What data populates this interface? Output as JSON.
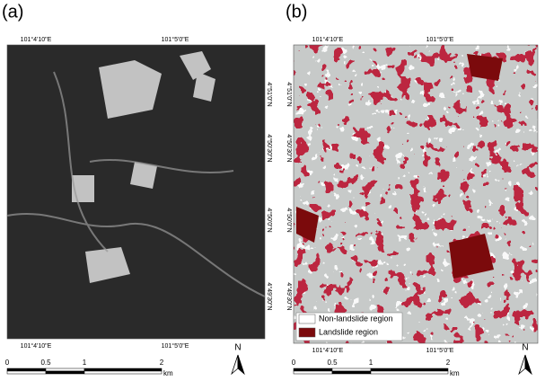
{
  "panels": [
    {
      "label": "(a)",
      "top_labels": [
        "101°4'10\"E",
        "101°5'0\"E"
      ],
      "bottom_labels": [
        "101°4'10\"E",
        "101°5'0\"E"
      ],
      "side_labels": [
        "4°51'0\"N",
        "4°50'30\"N",
        "4°50'0\"N",
        "4°49'30\"N"
      ],
      "scale_ticks": [
        "0",
        "0.5",
        "1",
        "2"
      ],
      "scale_unit": "km",
      "north": "N"
    },
    {
      "label": "(b)",
      "top_labels": [
        "101°4'10\"E",
        "101°5'0\"E"
      ],
      "bottom_labels": [
        "101°4'10\"E",
        "101°5'0\"E"
      ],
      "side_labels": [
        "4°51'0\"N",
        "4°50'30\"N",
        "4°50'0\"N",
        "4°49'30\"N"
      ],
      "legend": [
        "Non-landslide region",
        "Landslide region"
      ],
      "scale_ticks": [
        "0",
        "0.5",
        "1",
        "2"
      ],
      "scale_unit": "km",
      "north": "N"
    }
  ]
}
